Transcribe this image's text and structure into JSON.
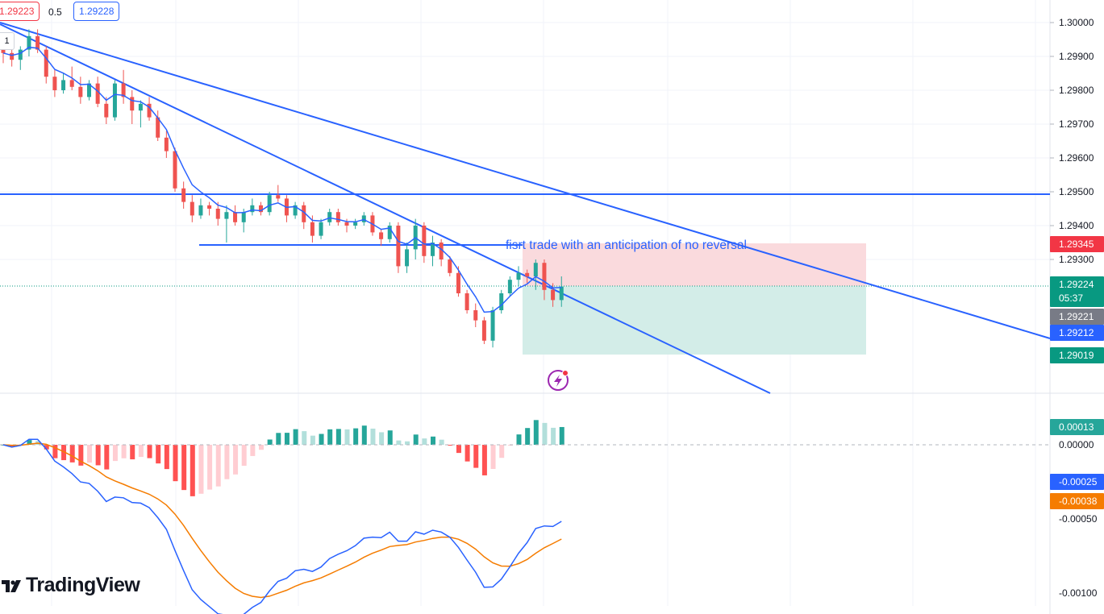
{
  "header": {
    "sell_price": "1.29223",
    "spread": "0.5",
    "buy_price": "1.29228",
    "quantity": "1"
  },
  "branding": {
    "logo_text": "TradingView"
  },
  "annotation": {
    "text": "fisrt trade with an anticipation of no reversal"
  },
  "colors": {
    "up": "#26a69a",
    "down": "#ef5350",
    "trendline": "#2962ff",
    "ema": "#2962ff",
    "macd": "#2962ff",
    "signal": "#f57c00",
    "stop_zone": "#fadadd",
    "target_zone": "#d3ede8"
  },
  "price_scale": {
    "ticks": [
      "1.30000",
      "1.29900",
      "1.29800",
      "1.29700",
      "1.29600",
      "1.29500",
      "1.29400",
      "1.29300"
    ],
    "labels": [
      {
        "text": "1.29345",
        "bg": "#f23645",
        "fg": "#ffffff"
      },
      {
        "text": "1.29224",
        "sub": "05:37",
        "bg": "#089981",
        "fg": "#ffffff"
      },
      {
        "text": "1.29221",
        "bg": "#787b86",
        "fg": "#ffffff"
      },
      {
        "text": "1.29212",
        "bg": "#2962ff",
        "fg": "#ffffff"
      },
      {
        "text": "1.29019",
        "bg": "#089981",
        "fg": "#ffffff"
      }
    ]
  },
  "macd_scale": {
    "ticks": [
      "0.00000",
      "-0.00050",
      "-0.00100"
    ],
    "labels": [
      {
        "text": "0.00013",
        "bg": "#26a69a",
        "fg": "#ffffff"
      },
      {
        "text": "-0.00025",
        "bg": "#2962ff",
        "fg": "#ffffff"
      },
      {
        "text": "-0.00038",
        "bg": "#f57c00",
        "fg": "#ffffff"
      }
    ]
  },
  "chart_data": {
    "type": "candlestick",
    "ylim": [
      1.2897,
      1.3004
    ],
    "candles": [
      [
        1.2993,
        1.2995,
        1.2988,
        1.2991
      ],
      [
        1.2991,
        1.2994,
        1.2987,
        1.2989
      ],
      [
        1.2989,
        1.2993,
        1.2986,
        1.2992
      ],
      [
        1.2992,
        1.2998,
        1.299,
        1.2996
      ],
      [
        1.2996,
        1.2998,
        1.2991,
        1.2992
      ],
      [
        1.2992,
        1.2993,
        1.2982,
        1.2984
      ],
      [
        1.2984,
        1.2986,
        1.2978,
        1.298
      ],
      [
        1.298,
        1.2985,
        1.2979,
        1.2983
      ],
      [
        1.2983,
        1.2987,
        1.298,
        1.2981
      ],
      [
        1.2981,
        1.2984,
        1.2976,
        1.2978
      ],
      [
        1.2978,
        1.2983,
        1.2977,
        1.2982
      ],
      [
        1.2982,
        1.2984,
        1.2975,
        1.2976
      ],
      [
        1.2976,
        1.2978,
        1.297,
        1.2972
      ],
      [
        1.2972,
        1.2983,
        1.2971,
        1.2982
      ],
      [
        1.2982,
        1.2986,
        1.2976,
        1.2978
      ],
      [
        1.2978,
        1.298,
        1.297,
        1.2974
      ],
      [
        1.2974,
        1.2977,
        1.2969,
        1.2976
      ],
      [
        1.2976,
        1.2978,
        1.2971,
        1.2972
      ],
      [
        1.2972,
        1.2974,
        1.2965,
        1.2966
      ],
      [
        1.2966,
        1.2968,
        1.296,
        1.2962
      ],
      [
        1.2962,
        1.2963,
        1.295,
        1.2951
      ],
      [
        1.2951,
        1.2953,
        1.2945,
        1.2947
      ],
      [
        1.2947,
        1.2949,
        1.2941,
        1.2943
      ],
      [
        1.2943,
        1.2948,
        1.2942,
        1.2946
      ],
      [
        1.2946,
        1.2947,
        1.2943,
        1.2945
      ],
      [
        1.2945,
        1.2947,
        1.294,
        1.2942
      ],
      [
        1.2942,
        1.2946,
        1.2935,
        1.2944
      ],
      [
        1.2944,
        1.2946,
        1.294,
        1.2941
      ],
      [
        1.2941,
        1.2945,
        1.2938,
        1.2944
      ],
      [
        1.2944,
        1.2948,
        1.2943,
        1.2946
      ],
      [
        1.2946,
        1.2947,
        1.2943,
        1.2944
      ],
      [
        1.2944,
        1.295,
        1.2943,
        1.2949
      ],
      [
        1.2949,
        1.2952,
        1.2947,
        1.2948
      ],
      [
        1.2948,
        1.2949,
        1.2941,
        1.2943
      ],
      [
        1.2943,
        1.2947,
        1.2942,
        1.2946
      ],
      [
        1.2946,
        1.2947,
        1.2939,
        1.2941
      ],
      [
        1.2941,
        1.2943,
        1.2935,
        1.2937
      ],
      [
        1.2937,
        1.2942,
        1.2936,
        1.2941
      ],
      [
        1.2941,
        1.2945,
        1.294,
        1.2944
      ],
      [
        1.2944,
        1.2945,
        1.294,
        1.2941
      ],
      [
        1.2941,
        1.2942,
        1.2938,
        1.294
      ],
      [
        1.294,
        1.2942,
        1.2939,
        1.2941
      ],
      [
        1.2941,
        1.2944,
        1.294,
        1.2943
      ],
      [
        1.2943,
        1.2944,
        1.2937,
        1.2938
      ],
      [
        1.2938,
        1.2939,
        1.2934,
        1.2936
      ],
      [
        1.2936,
        1.2941,
        1.2935,
        1.294
      ],
      [
        1.294,
        1.2941,
        1.2926,
        1.2928
      ],
      [
        1.2928,
        1.2935,
        1.2926,
        1.2933
      ],
      [
        1.2933,
        1.2942,
        1.293,
        1.294
      ],
      [
        1.294,
        1.2941,
        1.2929,
        1.2931
      ],
      [
        1.2931,
        1.2937,
        1.2928,
        1.2935
      ],
      [
        1.2935,
        1.2936,
        1.2928,
        1.293
      ],
      [
        1.293,
        1.2931,
        1.2925,
        1.2926
      ],
      [
        1.2926,
        1.2928,
        1.2919,
        1.292
      ],
      [
        1.292,
        1.2921,
        1.2914,
        1.2915
      ],
      [
        1.2915,
        1.2917,
        1.291,
        1.2912
      ],
      [
        1.2912,
        1.2913,
        1.2905,
        1.2906
      ],
      [
        1.2906,
        1.2916,
        1.2904,
        1.2915
      ],
      [
        1.2915,
        1.2921,
        1.2914,
        1.292
      ],
      [
        1.292,
        1.2925,
        1.2919,
        1.2924
      ],
      [
        1.2924,
        1.2928,
        1.2922,
        1.2926
      ],
      [
        1.2926,
        1.2927,
        1.2923,
        1.2925
      ],
      [
        1.2925,
        1.293,
        1.2921,
        1.2929
      ],
      [
        1.2929,
        1.293,
        1.2918,
        1.2921
      ],
      [
        1.2921,
        1.2923,
        1.2916,
        1.2918
      ],
      [
        1.2918,
        1.2925,
        1.2916,
        1.2922
      ]
    ]
  }
}
